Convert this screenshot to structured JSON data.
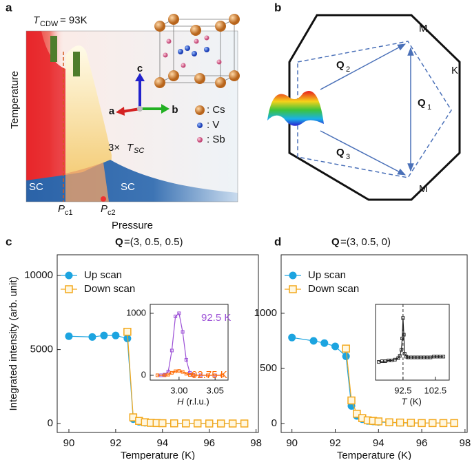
{
  "panel_a": {
    "label": "a",
    "tcdw": {
      "symbol": "T",
      "subscript": "CDW",
      "text": "= 93K"
    },
    "y_label": "Temperature",
    "x_label": "Pressure",
    "sc_left": "SC",
    "sc_right": "SC",
    "tsc": {
      "prefix": "3×",
      "symbol": "T",
      "subscript": "SC"
    },
    "pc1": {
      "symbol": "P",
      "subscript": "c1"
    },
    "pc2": {
      "symbol": "P",
      "subscript": "c2"
    },
    "axes": [
      "a",
      "b",
      "c"
    ],
    "legend": [
      ": Cs",
      ": V",
      ": Sb"
    ]
  },
  "panel_b": {
    "label": "b",
    "points": [
      "M",
      "K",
      "M"
    ],
    "vectors": [
      {
        "symbol": "Q",
        "subscript": "2"
      },
      {
        "symbol": "Q",
        "subscript": "1"
      },
      {
        "symbol": "Q",
        "subscript": "3"
      }
    ]
  },
  "chart_data": [
    {
      "type": "line",
      "panel": "c",
      "title_symbol": "Q",
      "title": "=(3, 0.5, 0.5)",
      "x_label": "Temperature (K)",
      "y_label": "Integrated intensity (arb. unit)",
      "xlim": [
        89.5,
        98.1
      ],
      "ylim": [
        -600,
        11400
      ],
      "xticks": [
        90,
        92,
        94,
        96,
        98
      ],
      "yticks": [
        0,
        5000,
        10000
      ],
      "legend": "upper left",
      "series": [
        {
          "name": "Up scan",
          "color": "#1ca4e0",
          "marker": "circle",
          "x": [
            90,
            91,
            91.5,
            92,
            92.5,
            92.75,
            93,
            93.25,
            93.5,
            93.75,
            94,
            94.5,
            95,
            95.5,
            96,
            96.5,
            97,
            97.5
          ],
          "values": [
            5900,
            5850,
            5950,
            5950,
            5750,
            300,
            120,
            60,
            40,
            30,
            20,
            15,
            10,
            10,
            5,
            5,
            5,
            5
          ]
        },
        {
          "name": "Down scan",
          "color": "#f3a81c",
          "marker": "square",
          "x": [
            92.5,
            92.75,
            93,
            93.25,
            93.5,
            93.75,
            94,
            94.5,
            95,
            95.5,
            96,
            96.5,
            97,
            97.5
          ],
          "values": [
            6200,
            420,
            180,
            90,
            50,
            35,
            25,
            15,
            10,
            10,
            5,
            5,
            5,
            5
          ]
        }
      ]
    },
    {
      "type": "line",
      "x_label_symbol": "H",
      "x_label": "(r.l.u.)",
      "xlim": [
        2.96,
        3.068
      ],
      "ylim": [
        -78,
        1144
      ],
      "xticks": [
        {
          "value": 3.0,
          "label": "3.00"
        },
        3.05
      ],
      "yticks": [
        0,
        1000
      ],
      "legend": "inline",
      "series": [
        {
          "name": "92.5 K",
          "color": "#9b4fd6",
          "marker": "small-square",
          "x": [
            2.97,
            2.975,
            2.98,
            2.985,
            2.99,
            2.995,
            3.0,
            3.005,
            3.01,
            3.015,
            3.02,
            3.03,
            3.04,
            3.05,
            3.06
          ],
          "values": [
            0,
            0,
            10,
            60,
            400,
            950,
            1000,
            700,
            250,
            40,
            5,
            0,
            0,
            0,
            0
          ]
        },
        {
          "name": "92.75 K",
          "color": "#ff6a00",
          "marker": "small-square",
          "x": [
            2.97,
            2.98,
            2.985,
            2.99,
            2.995,
            3.0,
            3.005,
            3.01,
            3.015,
            3.02,
            3.04,
            3.06
          ],
          "values": [
            0,
            0,
            10,
            40,
            65,
            70,
            55,
            25,
            5,
            0,
            0,
            0
          ]
        }
      ]
    },
    {
      "type": "line",
      "panel": "d",
      "title_symbol": "Q",
      "title": "=(3, 0.5, 0)",
      "x_label": "Temperature (K)",
      "xlim": [
        89.5,
        98.1
      ],
      "ylim": [
        -80,
        1530
      ],
      "xticks": [
        90,
        92,
        94,
        96,
        98
      ],
      "yticks": [
        0,
        500,
        1000
      ],
      "legend": "upper left",
      "series": [
        {
          "name": "Up scan",
          "color": "#1ca4e0",
          "marker": "circle",
          "x": [
            90,
            91,
            91.5,
            92,
            92.5,
            92.75,
            93,
            93.25,
            93.5,
            93.75,
            94,
            94.5,
            95,
            95.5,
            96,
            96.5,
            97,
            97.5
          ],
          "values": [
            780,
            750,
            730,
            700,
            610,
            160,
            70,
            40,
            25,
            20,
            15,
            10,
            8,
            5,
            5,
            5,
            5,
            5
          ]
        },
        {
          "name": "Down scan",
          "color": "#f3a81c",
          "marker": "square",
          "x": [
            92.5,
            92.75,
            93,
            93.25,
            93.5,
            93.75,
            94,
            94.5,
            95,
            95.5,
            96,
            96.5,
            97,
            97.5
          ],
          "values": [
            680,
            210,
            90,
            50,
            30,
            25,
            20,
            12,
            10,
            8,
            5,
            5,
            5,
            5
          ]
        }
      ]
    },
    {
      "type": "line",
      "x_label_symbol": "T",
      "x_label": "(K)",
      "xlim": [
        84,
        106.8
      ],
      "ylim": [
        0,
        100
      ],
      "xticks": [
        92.5,
        102.5
      ],
      "vline": 92.5,
      "series": [
        {
          "color": "#222",
          "marker": "small-square",
          "x": [
            85,
            86,
            87,
            88,
            89,
            90,
            91,
            91.5,
            92,
            92.25,
            92.5,
            92.75,
            93,
            93.5,
            94,
            95,
            96,
            97,
            98,
            99,
            100,
            101,
            102,
            103,
            104,
            105
          ],
          "values": [
            24,
            25,
            25,
            26,
            26,
            27,
            29,
            32,
            40,
            55,
            82,
            60,
            35,
            31,
            30,
            30,
            30,
            30,
            30,
            30,
            30,
            30,
            31,
            31,
            31,
            31
          ]
        }
      ]
    }
  ]
}
